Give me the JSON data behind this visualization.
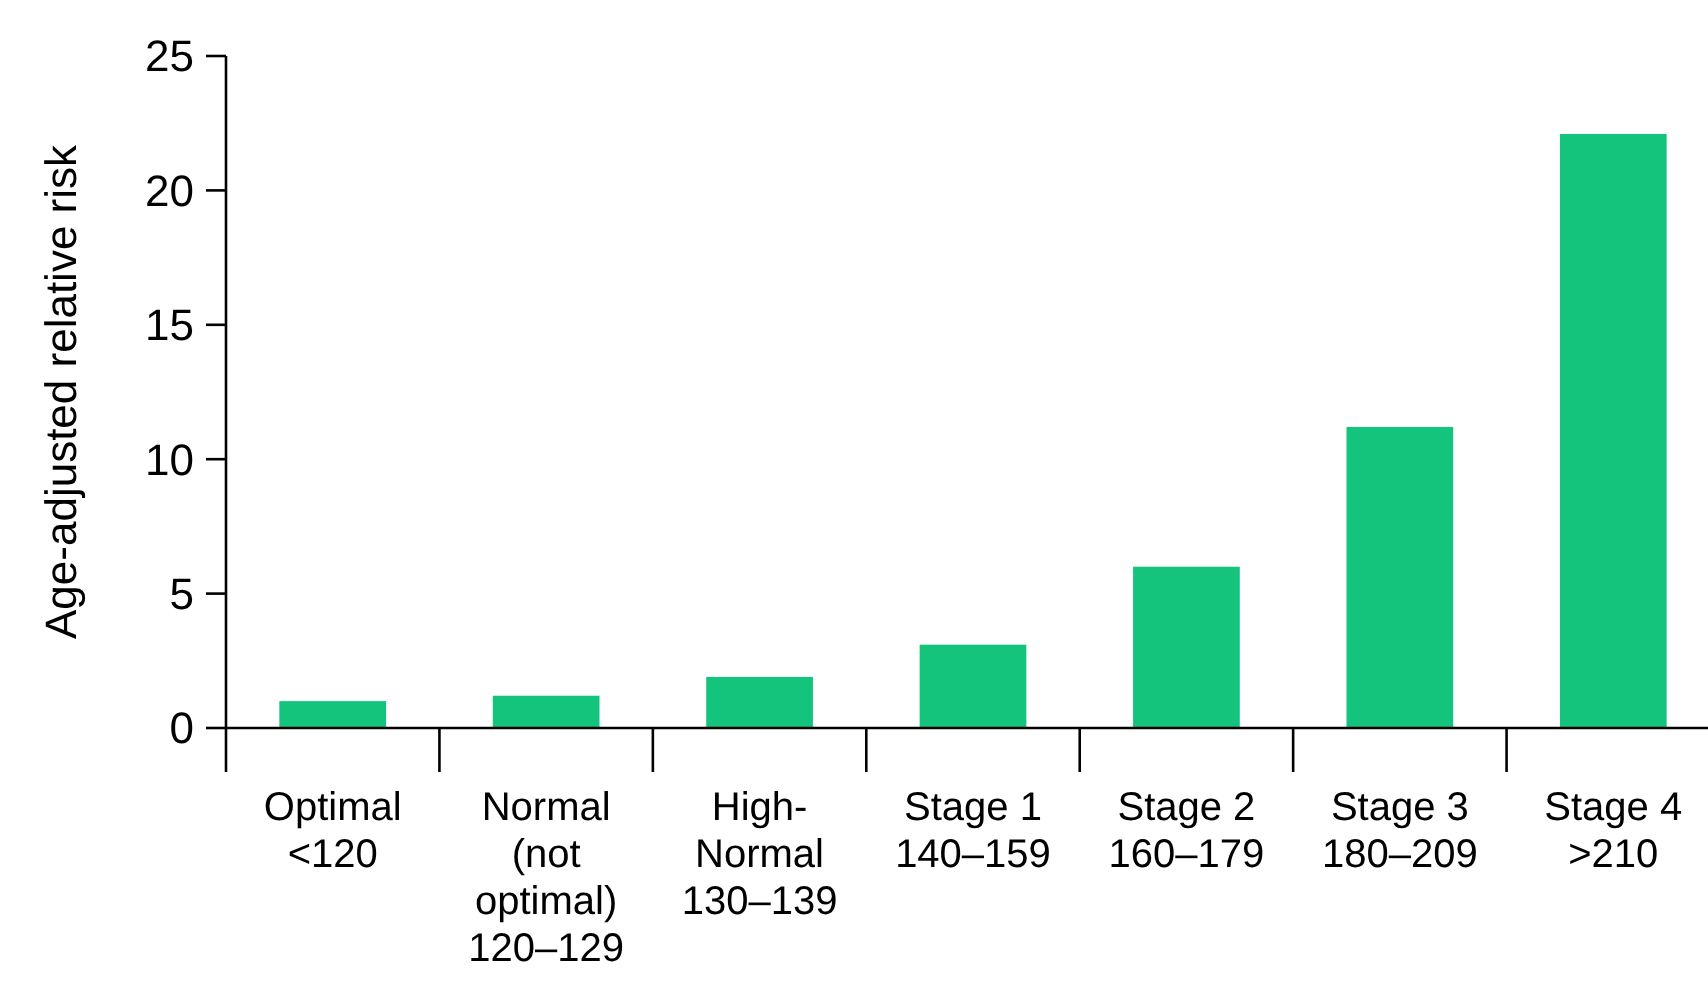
{
  "chart_data": {
    "type": "bar",
    "ylabel": "Age-adjusted relative risk",
    "categories": [
      "Optimal\n<120",
      "Normal\n(not\noptimal)\n120–129",
      "High-\nNormal\n130–139",
      "Stage 1\n140–159",
      "Stage 2\n160–179",
      "Stage 3\n180–209",
      "Stage 4\n>210"
    ],
    "values": [
      1.0,
      1.2,
      1.9,
      3.1,
      6.0,
      11.2,
      22.1
    ],
    "color": "#14c47d",
    "ylim": [
      0,
      25
    ],
    "yticks": [
      0,
      5,
      10,
      15,
      20,
      25
    ],
    "grid": false
  }
}
